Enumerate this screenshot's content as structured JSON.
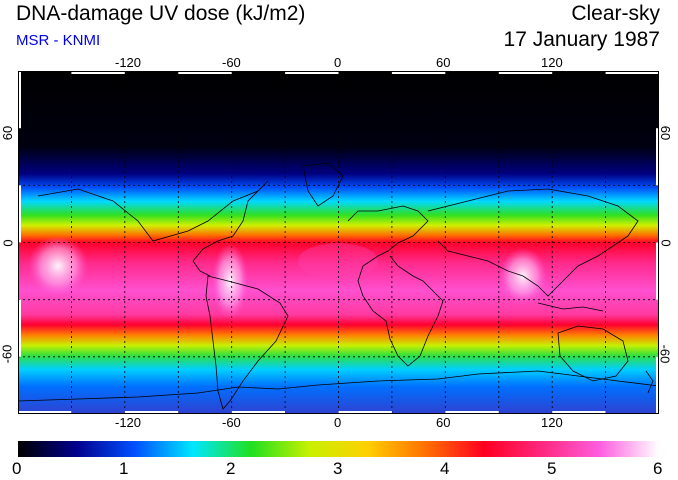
{
  "header": {
    "title": "DNA-damage UV dose (kJ/m2)",
    "source": "MSR - KNMI",
    "condition": "Clear-sky",
    "date": "17 January 1987"
  },
  "map": {
    "projection": "equirectangular",
    "lon_range": [
      -180,
      180
    ],
    "lat_range": [
      -90,
      90
    ],
    "grid": "dashed",
    "lon_ticks": [
      "-120",
      "-60",
      "0",
      "60",
      "120"
    ],
    "lat_ticks": [
      "60",
      "0",
      "-60"
    ]
  },
  "colorbar": {
    "range": [
      0,
      6
    ],
    "labels": [
      "0",
      "1",
      "2",
      "3",
      "4",
      "5",
      "6"
    ],
    "colors": [
      "#000000",
      "#00008c",
      "#0050ff",
      "#00e6ff",
      "#20e020",
      "#c8f000",
      "#ffd000",
      "#ff7000",
      "#ff0020",
      "#ff2880",
      "#ff60e0",
      "#ffffff"
    ]
  },
  "colors": {
    "subtitle": "#0000ee",
    "background": "#ffffff"
  }
}
